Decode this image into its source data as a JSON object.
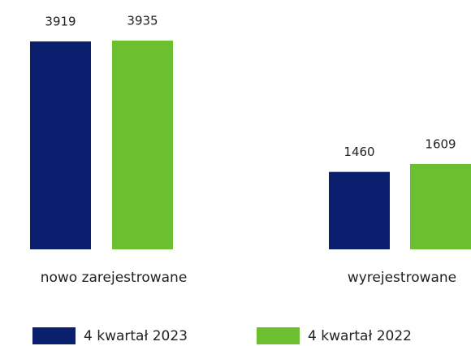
{
  "chart_data": {
    "type": "bar",
    "categories": [
      "nowo zarejestrowane",
      "wyrejestrowane"
    ],
    "series": [
      {
        "name": "4 kwartał 2023",
        "color": "#0b1f6f",
        "values": [
          3919,
          1460
        ]
      },
      {
        "name": "4 kwartał 2022",
        "color": "#6cbf2f",
        "values": [
          3935,
          1609
        ]
      }
    ]
  }
}
